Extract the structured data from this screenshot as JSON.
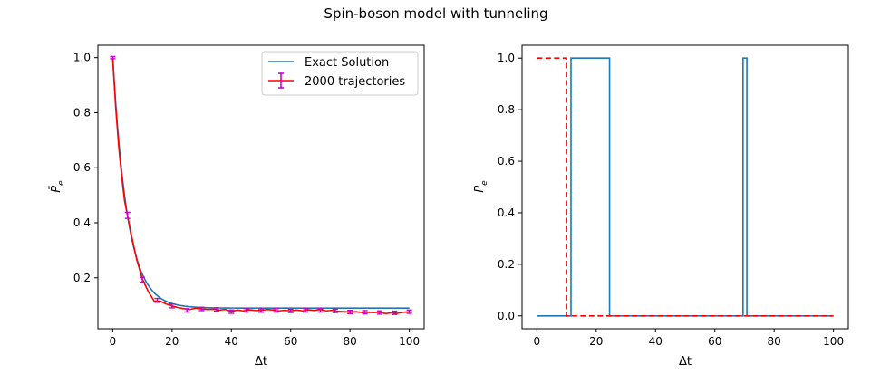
{
  "figure": {
    "suptitle": "Spin-boson model with tunneling"
  },
  "chart_data": [
    {
      "type": "line",
      "title": "",
      "xlabel": "Δt",
      "ylabel": "P̄",
      "ylabel_sub": "e",
      "xlim": [
        -5,
        105
      ],
      "ylim": [
        0.015,
        1.045
      ],
      "xticks": [
        0,
        20,
        40,
        60,
        80,
        100
      ],
      "yticks": [
        0.2,
        0.4,
        0.6,
        0.8,
        1.0
      ],
      "xtick_labels": [
        "0",
        "20",
        "40",
        "60",
        "80",
        "100"
      ],
      "ytick_labels": [
        "0.2",
        "0.4",
        "0.6",
        "0.8",
        "1.0"
      ],
      "legend_position": "top-right",
      "series": [
        {
          "name": "Exact Solution",
          "color": "#1f77b4",
          "style": "solid",
          "model": {
            "y_inf": 0.09,
            "amplitude": 0.91,
            "rate": 0.2
          },
          "x_range": [
            0,
            100
          ]
        },
        {
          "name": "2000 trajectories",
          "color": "#ff0000",
          "errorbar_color": "#cc00cc",
          "style": "solid",
          "x": [
            0,
            1,
            2,
            3,
            4,
            5,
            6,
            8,
            10,
            12,
            14,
            16,
            18,
            20,
            22,
            24,
            26,
            28,
            30,
            32,
            34,
            36,
            38,
            40,
            42,
            44,
            46,
            48,
            50,
            52,
            54,
            56,
            58,
            60,
            62,
            64,
            66,
            68,
            70,
            72,
            74,
            76,
            78,
            80,
            82,
            84,
            86,
            88,
            90,
            92,
            94,
            96,
            98,
            100
          ],
          "y": [
            1.0,
            0.82,
            0.68,
            0.57,
            0.48,
            0.425,
            0.37,
            0.27,
            0.195,
            0.15,
            0.115,
            0.115,
            0.105,
            0.098,
            0.092,
            0.088,
            0.085,
            0.09,
            0.087,
            0.085,
            0.086,
            0.083,
            0.085,
            0.078,
            0.083,
            0.08,
            0.084,
            0.082,
            0.081,
            0.085,
            0.083,
            0.08,
            0.082,
            0.08,
            0.083,
            0.08,
            0.084,
            0.082,
            0.085,
            0.08,
            0.082,
            0.078,
            0.077,
            0.076,
            0.077,
            0.074,
            0.075,
            0.074,
            0.075,
            0.07,
            0.073,
            0.071,
            0.075,
            0.077
          ],
          "errorbars": [
            {
              "x": 0,
              "y": 1.0,
              "err": 0.004
            },
            {
              "x": 5,
              "y": 0.427,
              "err": 0.011
            },
            {
              "x": 10,
              "y": 0.193,
              "err": 0.009
            },
            {
              "x": 15,
              "y": 0.118,
              "err": 0.007
            },
            {
              "x": 20,
              "y": 0.098,
              "err": 0.007
            },
            {
              "x": 25,
              "y": 0.082,
              "err": 0.006
            },
            {
              "x": 30,
              "y": 0.087,
              "err": 0.006
            },
            {
              "x": 35,
              "y": 0.085,
              "err": 0.006
            },
            {
              "x": 40,
              "y": 0.077,
              "err": 0.006
            },
            {
              "x": 45,
              "y": 0.082,
              "err": 0.006
            },
            {
              "x": 50,
              "y": 0.081,
              "err": 0.006
            },
            {
              "x": 55,
              "y": 0.082,
              "err": 0.006
            },
            {
              "x": 60,
              "y": 0.08,
              "err": 0.006
            },
            {
              "x": 65,
              "y": 0.082,
              "err": 0.006
            },
            {
              "x": 70,
              "y": 0.082,
              "err": 0.006
            },
            {
              "x": 75,
              "y": 0.08,
              "err": 0.006
            },
            {
              "x": 80,
              "y": 0.076,
              "err": 0.006
            },
            {
              "x": 85,
              "y": 0.075,
              "err": 0.006
            },
            {
              "x": 90,
              "y": 0.074,
              "err": 0.006
            },
            {
              "x": 95,
              "y": 0.073,
              "err": 0.006
            },
            {
              "x": 100,
              "y": 0.077,
              "err": 0.006
            }
          ]
        }
      ]
    },
    {
      "type": "line",
      "title": "",
      "xlabel": "Δt",
      "ylabel": "P",
      "ylabel_sub": "e",
      "xlim": [
        -5,
        105
      ],
      "ylim": [
        -0.05,
        1.05
      ],
      "xticks": [
        0,
        20,
        40,
        60,
        80,
        100
      ],
      "yticks": [
        0.0,
        0.2,
        0.4,
        0.6,
        0.8,
        1.0
      ],
      "xtick_labels": [
        "0",
        "20",
        "40",
        "60",
        "80",
        "100"
      ],
      "ytick_labels": [
        "0.0",
        "0.2",
        "0.4",
        "0.6",
        "0.8",
        "1.0"
      ],
      "series": [
        {
          "color": "#1f77b4",
          "style": "solid",
          "x": [
            0,
            11.5,
            11.5,
            24.5,
            24.5,
            69.5,
            69.5,
            70.8,
            70.8,
            100
          ],
          "y": [
            0,
            0,
            1,
            1,
            0,
            0,
            1,
            1,
            0,
            0
          ]
        },
        {
          "color": "#ff0000",
          "style": "dashed",
          "x": [
            0,
            10,
            10,
            100
          ],
          "y": [
            1,
            1,
            0,
            0
          ]
        }
      ]
    }
  ]
}
